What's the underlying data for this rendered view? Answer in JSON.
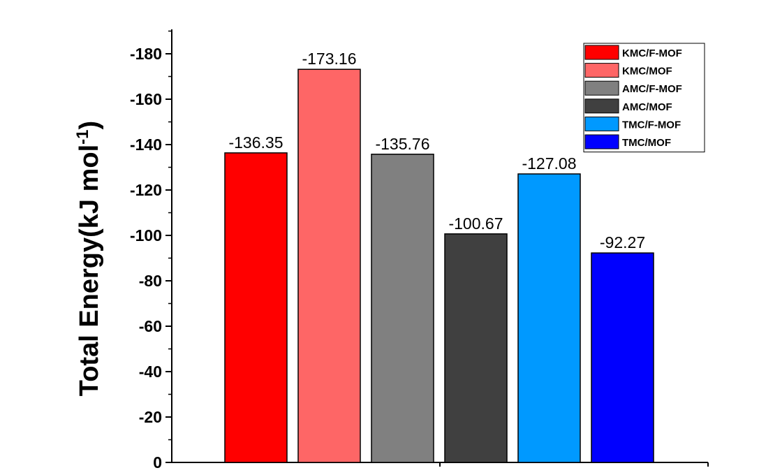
{
  "chart_data": {
    "type": "bar",
    "title": "",
    "xlabel": "",
    "ylabel": "Total Energy(kJ mol",
    "ylabel_superscript": "-1",
    "ylabel_close": ")",
    "ylim": [
      0,
      -190
    ],
    "yticks": [
      0,
      -20,
      -40,
      -60,
      -80,
      -100,
      -120,
      -140,
      -160,
      -180
    ],
    "ytick_labels": [
      "0",
      "-20",
      "-40",
      "-60",
      "-80",
      "-100",
      "-120",
      "-140",
      "-160",
      "-180"
    ],
    "grid": false,
    "legend_position": "top-right",
    "categories": [
      "KMC/F-MOF",
      "KMC/MOF",
      "AMC/F-MOF",
      "AMC/MOF",
      "TMC/F-MOF",
      "TMC/MOF"
    ],
    "values": [
      -136.35,
      -173.16,
      -135.76,
      -100.67,
      -127.08,
      -92.27
    ],
    "data_labels": [
      "-136.35",
      "-173.16",
      "-135.76",
      "-100.67",
      "-127.08",
      "-92.27"
    ],
    "colors": [
      "#ff0000",
      "#fe6666",
      "#808080",
      "#404040",
      "#0099ff",
      "#0000ff"
    ]
  }
}
